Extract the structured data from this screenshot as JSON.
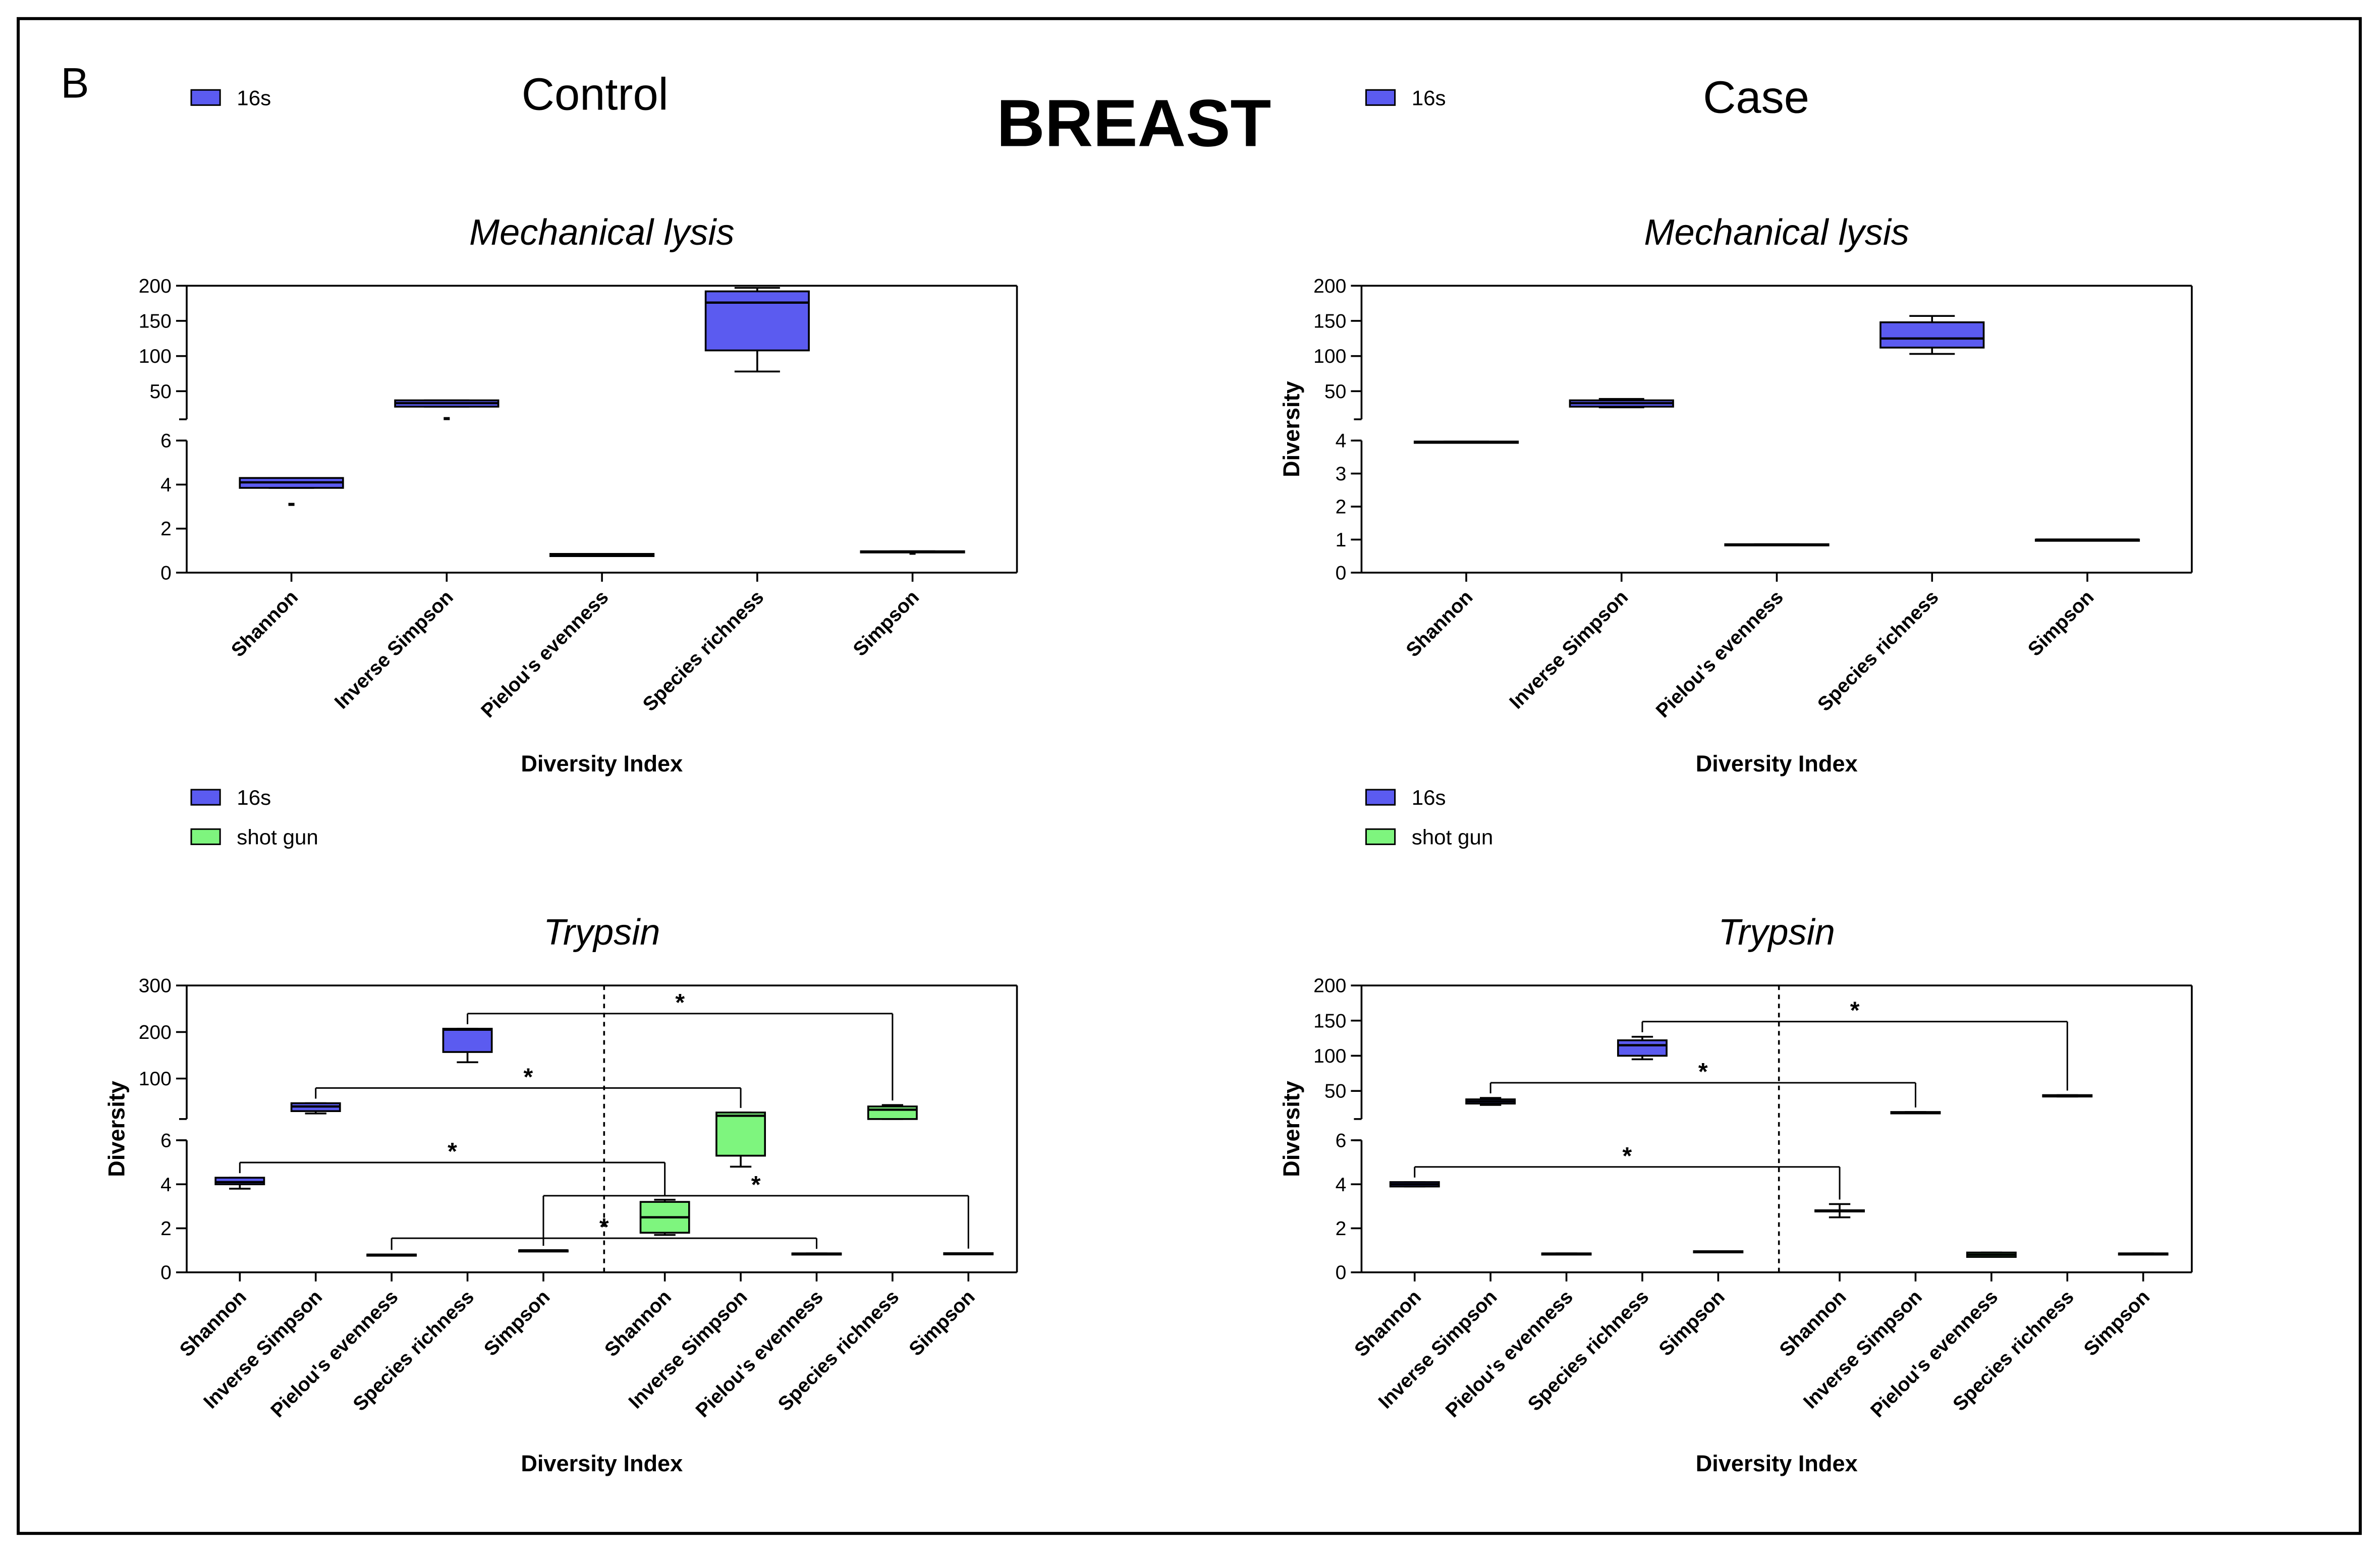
{
  "panel_label": "B",
  "title": "BREAST",
  "column_titles": [
    "Control",
    "Case"
  ],
  "chart_data": [
    {
      "type": "box",
      "title": "Mechanical lysis",
      "xlabel": "Diversity Index",
      "ylim": [
        0,
        200
      ],
      "ybreak": [
        6,
        10
      ],
      "yticks": [
        0,
        2,
        4,
        6,
        50,
        100,
        150,
        200
      ],
      "series": [
        {
          "name": "16s",
          "color": "#5b5bf0",
          "categories": [
            "Shannon",
            "Inverse Simpson",
            "Pielou's evenness",
            "Species richness",
            "Simpson"
          ],
          "boxes": [
            {
              "min": 3.85,
              "q1": 3.85,
              "median": 4.1,
              "q3": 4.3,
              "max": 4.3,
              "outliers": [
                3.1
              ]
            },
            {
              "min": 28,
              "q1": 28,
              "median": 33,
              "q3": 37,
              "max": 37,
              "outliers": [
                11
              ]
            },
            {
              "min": 0.75,
              "q1": 0.75,
              "median": 0.8,
              "q3": 0.85,
              "max": 0.85
            },
            {
              "min": 78,
              "q1": 108,
              "median": 176,
              "q3": 192,
              "max": 197
            },
            {
              "min": 0.95,
              "q1": 0.95,
              "median": 0.95,
              "q3": 0.97,
              "max": 0.97,
              "outliers": [
                0.88
              ]
            }
          ]
        }
      ],
      "annotations": []
    },
    {
      "type": "box",
      "title": "Mechanical lysis",
      "xlabel": "Diversity Index",
      "ylabel": "Diversity",
      "ylim": [
        0,
        200
      ],
      "ybreak": [
        4,
        10
      ],
      "yticks": [
        0,
        1,
        2,
        3,
        4,
        50,
        100,
        150,
        200
      ],
      "series": [
        {
          "name": "16s",
          "color": "#5b5bf0",
          "categories": [
            "Shannon",
            "Inverse Simpson",
            "Pielou's evenness",
            "Species richness",
            "Simpson"
          ],
          "boxes": [
            {
              "min": 3.93,
              "q1": 3.93,
              "median": 3.95,
              "q3": 3.97,
              "max": 3.97
            },
            {
              "min": 27,
              "q1": 28,
              "median": 33,
              "q3": 37,
              "max": 39
            },
            {
              "min": 0.84,
              "q1": 0.84,
              "median": 0.85,
              "q3": 0.86,
              "max": 0.86
            },
            {
              "min": 103,
              "q1": 112,
              "median": 125,
              "q3": 148,
              "max": 157
            },
            {
              "min": 0.99,
              "q1": 0.99,
              "median": 1.0,
              "q3": 1.0,
              "max": 1.0
            }
          ]
        }
      ],
      "annotations": []
    },
    {
      "type": "box",
      "title": "Trypsin",
      "xlabel": "Diversity Index",
      "ylabel": "Diversity",
      "ylim": [
        0,
        300
      ],
      "ybreak": [
        6,
        13
      ],
      "yticks": [
        0,
        2,
        4,
        6,
        100,
        200,
        300
      ],
      "series": [
        {
          "name": "16s",
          "color": "#5b5bf0",
          "categories": [
            "Shannon",
            "Inverse Simpson",
            "Pielou's evenness",
            "Species richness",
            "Simpson"
          ],
          "boxes": [
            {
              "min": 3.8,
              "q1": 4.0,
              "median": 4.1,
              "q3": 4.3,
              "max": 4.3
            },
            {
              "min": 25,
              "q1": 30,
              "median": 40,
              "q3": 47,
              "max": 47
            },
            {
              "min": 0.79,
              "q1": 0.79,
              "median": 0.8,
              "q3": 0.81,
              "max": 0.81
            },
            {
              "min": 135,
              "q1": 157,
              "median": 205,
              "q3": 207,
              "max": 207
            },
            {
              "min": 0.99,
              "q1": 0.99,
              "median": 1.0,
              "q3": 1.0,
              "max": 1.0
            }
          ]
        },
        {
          "name": "shot gun",
          "color": "#7ef57e",
          "categories": [
            "Shannon",
            "Inverse Simpson",
            "Pielou's evenness",
            "Species richness",
            "Simpson"
          ],
          "boxes": [
            {
              "min": 1.7,
              "q1": 1.8,
              "median": 2.5,
              "q3": 3.2,
              "max": 3.3
            },
            {
              "min": 4.8,
              "q1": 5.3,
              "median": 20,
              "q3": 27,
              "max": 27
            },
            {
              "min": 0.84,
              "q1": 0.84,
              "median": 0.85,
              "q3": 0.86,
              "max": 0.86
            },
            {
              "min": 13,
              "q1": 13,
              "median": 33,
              "q3": 40,
              "max": 43
            },
            {
              "min": 0.83,
              "q1": 0.83,
              "median": 0.85,
              "q3": 0.87,
              "max": 0.87
            }
          ]
        }
      ],
      "annotations": [
        {
          "text": "*",
          "from": 3,
          "to": 8
        },
        {
          "text": "*",
          "from": 1,
          "to": 6
        },
        {
          "text": "*",
          "from": 0,
          "to": 5
        },
        {
          "text": "*",
          "from": 2,
          "to": 7
        },
        {
          "text": "*",
          "from": 4,
          "to": 9
        }
      ]
    },
    {
      "type": "box",
      "title": "Trypsin",
      "xlabel": "Diversity Index",
      "ylabel": "Diversity",
      "ylim": [
        0,
        200
      ],
      "ybreak": [
        6,
        10
      ],
      "yticks": [
        0,
        2,
        4,
        6,
        50,
        100,
        150,
        200
      ],
      "series": [
        {
          "name": "16s",
          "color": "#5b5bf0",
          "categories": [
            "Shannon",
            "Inverse Simpson",
            "Pielou's evenness",
            "Species richness",
            "Simpson"
          ],
          "boxes": [
            {
              "min": 3.9,
              "q1": 3.9,
              "median": 4.0,
              "q3": 4.1,
              "max": 4.1
            },
            {
              "min": 30,
              "q1": 32,
              "median": 35,
              "q3": 38,
              "max": 40
            },
            {
              "min": 0.84,
              "q1": 0.84,
              "median": 0.85,
              "q3": 0.86,
              "max": 0.86
            },
            {
              "min": 95,
              "q1": 100,
              "median": 115,
              "q3": 122,
              "max": 127
            },
            {
              "min": 0.94,
              "q1": 0.94,
              "median": 0.95,
              "q3": 0.96,
              "max": 0.96
            }
          ]
        },
        {
          "name": "shot gun",
          "color": "#7ef57e",
          "categories": [
            "Shannon",
            "Inverse Simpson",
            "Pielou's evenness",
            "Species richness",
            "Simpson"
          ],
          "boxes": [
            {
              "min": 2.5,
              "q1": 2.78,
              "median": 2.8,
              "q3": 2.82,
              "max": 3.1
            },
            {
              "min": 18,
              "q1": 18,
              "median": 19,
              "q3": 20,
              "max": 20
            },
            {
              "min": 0.7,
              "q1": 0.7,
              "median": 0.8,
              "q3": 0.9,
              "max": 0.9
            },
            {
              "min": 42,
              "q1": 42,
              "median": 43,
              "q3": 44,
              "max": 44
            },
            {
              "min": 0.84,
              "q1": 0.84,
              "median": 0.85,
              "q3": 0.86,
              "max": 0.86
            }
          ]
        }
      ],
      "annotations": [
        {
          "text": "*",
          "from": 3,
          "to": 8
        },
        {
          "text": "*",
          "from": 1,
          "to": 6
        },
        {
          "text": "*",
          "from": 0,
          "to": 5
        }
      ]
    }
  ]
}
